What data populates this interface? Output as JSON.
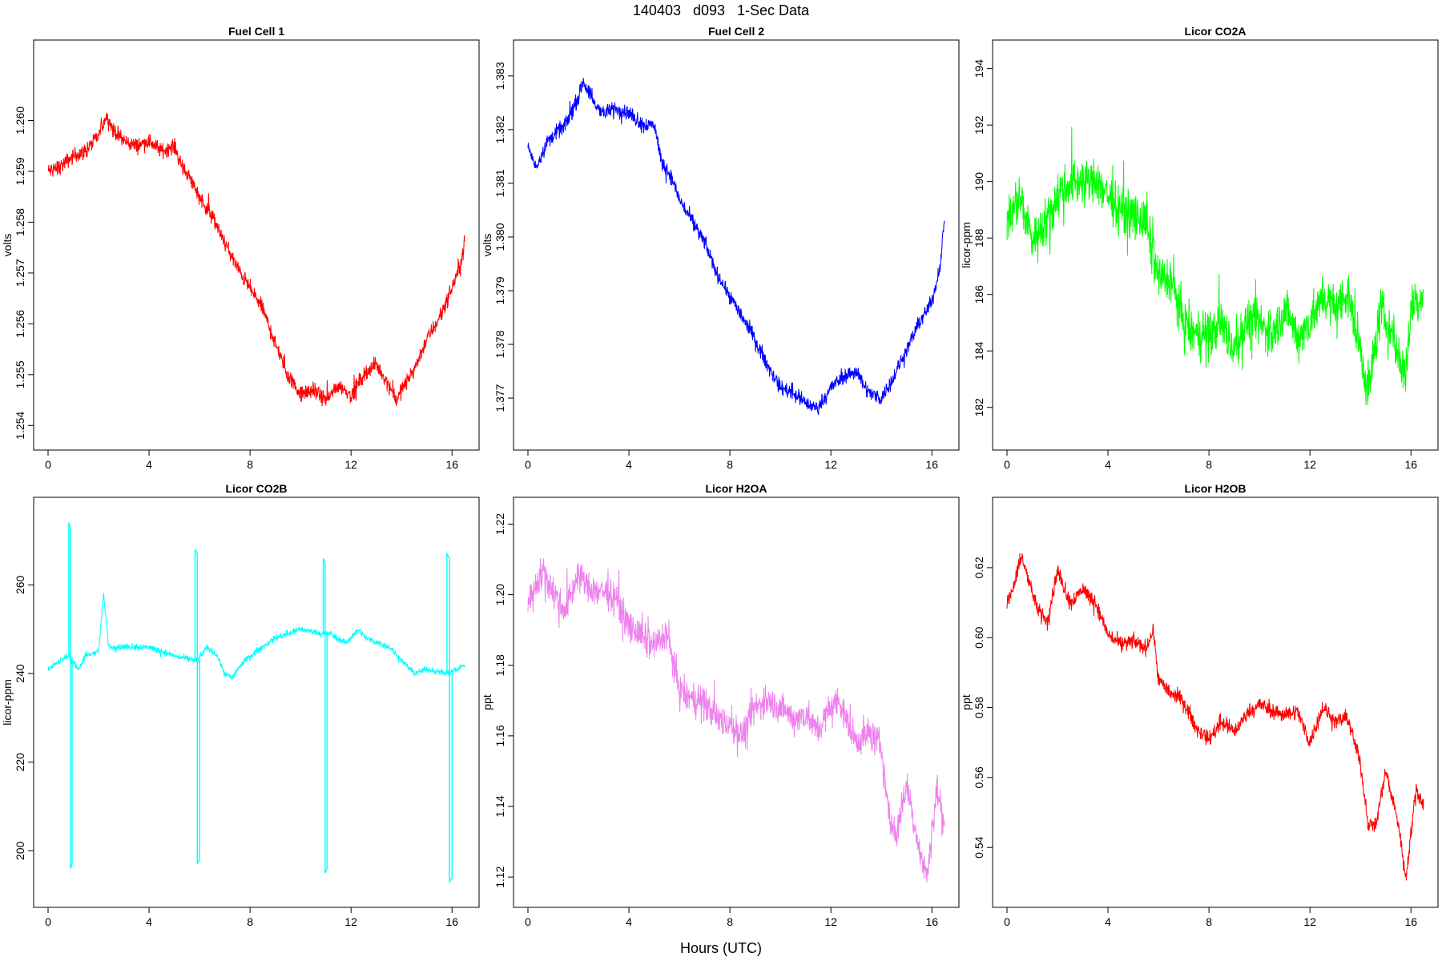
{
  "figure": {
    "suptitle": "140403   d093   1-Sec Data",
    "xlabel": "Hours (UTC)"
  },
  "chart_data": [
    {
      "type": "line",
      "title": "Fuel Cell 1",
      "ylabel": "volts",
      "color": "#ff0000",
      "xlim": [
        0,
        16.5
      ],
      "ylim": [
        1.2538,
        1.2613
      ],
      "xticks": [
        "0",
        "4",
        "8",
        "12",
        "16"
      ],
      "yticks": [
        "1.254",
        "1.255",
        "1.256",
        "1.257",
        "1.258",
        "1.259",
        "1.260"
      ],
      "noise": 0.00022,
      "series": [
        {
          "x": [
            0,
            0.5,
            1.0,
            1.5,
            2.0,
            2.3,
            2.6,
            3.0,
            3.5,
            4.0,
            4.5,
            5.0,
            5.3,
            5.7,
            6.0,
            6.5,
            7.0,
            7.5,
            8.0,
            8.5,
            9.0,
            9.5,
            10.0,
            10.5,
            11.0,
            11.5,
            12.0,
            12.5,
            13.0,
            13.5,
            13.8,
            14.0,
            14.5,
            15.0,
            15.5,
            16.0,
            16.3,
            16.5
          ],
          "y": [
            1.259,
            1.2591,
            1.2593,
            1.2594,
            1.2597,
            1.2601,
            1.2598,
            1.2596,
            1.2595,
            1.2596,
            1.2594,
            1.2595,
            1.2591,
            1.2588,
            1.2585,
            1.2581,
            1.2576,
            1.2571,
            1.2567,
            1.2563,
            1.2556,
            1.255,
            1.2546,
            1.2547,
            1.2545,
            1.2548,
            1.2546,
            1.255,
            1.2552,
            1.2548,
            1.2545,
            1.2547,
            1.2551,
            1.2557,
            1.2561,
            1.2567,
            1.2571,
            1.2576
          ]
        }
      ]
    },
    {
      "type": "line",
      "title": "Fuel Cell 2",
      "ylabel": "volts",
      "color": "#0000ff",
      "xlim": [
        0,
        16.5
      ],
      "ylim": [
        1.3763,
        1.3834
      ],
      "xticks": [
        "0",
        "4",
        "8",
        "12",
        "16"
      ],
      "yticks": [
        "1.377",
        "1.378",
        "1.379",
        "1.380",
        "1.381",
        "1.382",
        "1.383"
      ],
      "noise": 0.0002,
      "series": [
        {
          "x": [
            0,
            0.3,
            0.8,
            1.5,
            2.0,
            2.2,
            2.6,
            3.0,
            3.5,
            4.0,
            4.5,
            5.0,
            5.3,
            5.7,
            6.0,
            6.5,
            7.0,
            7.5,
            8.0,
            8.5,
            9.0,
            9.5,
            10.0,
            10.5,
            11.0,
            11.5,
            12.0,
            12.5,
            13.0,
            13.5,
            14.0,
            14.5,
            15.0,
            15.5,
            16.0,
            16.3,
            16.5
          ],
          "y": [
            1.3817,
            1.3813,
            1.3818,
            1.3821,
            1.3826,
            1.3829,
            1.3825,
            1.3823,
            1.3824,
            1.3823,
            1.3821,
            1.3821,
            1.3814,
            1.3811,
            1.3807,
            1.3803,
            1.3799,
            1.3793,
            1.3789,
            1.3785,
            1.3781,
            1.3776,
            1.3772,
            1.3771,
            1.3769,
            1.3768,
            1.3772,
            1.3774,
            1.3775,
            1.3771,
            1.377,
            1.3774,
            1.3779,
            1.3784,
            1.3788,
            1.3794,
            1.3803
          ]
        }
      ]
    },
    {
      "type": "line",
      "title": "Licor CO2A",
      "ylabel": "licor-ppm",
      "color": "#00ff00",
      "xlim": [
        0,
        16.5
      ],
      "ylim": [
        181.0,
        194.5
      ],
      "xticks": [
        "0",
        "4",
        "8",
        "12",
        "16"
      ],
      "yticks": [
        "182",
        "184",
        "186",
        "188",
        "190",
        "192",
        "194"
      ],
      "noise": 1.2,
      "series": [
        {
          "x": [
            0,
            0.5,
            1.0,
            1.5,
            2.0,
            2.5,
            3.0,
            3.5,
            4.0,
            4.5,
            5.0,
            5.5,
            6.0,
            6.5,
            7.0,
            7.5,
            8.0,
            8.5,
            9.0,
            9.5,
            10.0,
            10.5,
            11.0,
            11.5,
            12.0,
            12.5,
            13.0,
            13.5,
            14.0,
            14.3,
            14.8,
            15.3,
            15.8,
            16.0,
            16.5
          ],
          "y": [
            188.5,
            189.5,
            188.0,
            188.5,
            189.5,
            190.0,
            190.0,
            190.0,
            189.5,
            189.0,
            188.8,
            188.5,
            186.5,
            186.5,
            185.0,
            184.5,
            184.5,
            185.0,
            184.0,
            185.0,
            185.0,
            184.5,
            185.5,
            184.5,
            185.0,
            186.0,
            185.5,
            186.0,
            184.0,
            182.5,
            185.5,
            184.5,
            183.0,
            185.5,
            186.0
          ]
        }
      ]
    },
    {
      "type": "line",
      "title": "Licor CO2B",
      "ylabel": "licor-ppm",
      "color": "#00ffff",
      "xlim": [
        0,
        16.5
      ],
      "ylim": [
        190.5,
        276.5
      ],
      "xticks": [
        "0",
        "4",
        "8",
        "12",
        "16"
      ],
      "yticks": [
        "200",
        "220",
        "240",
        "260"
      ],
      "noise": 1.0,
      "series": [
        {
          "x": [
            0,
            0.5,
            0.8,
            0.95,
            1.05,
            1.2,
            1.5,
            2.0,
            2.2,
            2.4,
            3.0,
            4.0,
            5.0,
            5.8,
            5.95,
            6.05,
            6.3,
            6.7,
            7.0,
            7.3,
            7.5,
            8.0,
            9.0,
            10.0,
            10.8,
            11.0,
            11.2,
            11.4,
            11.8,
            12.0,
            12.3,
            12.6,
            13.5,
            14.0,
            14.5,
            15.0,
            15.8,
            16.2,
            16.5
          ],
          "y": [
            241,
            243,
            244,
            243,
            242,
            241,
            244,
            245,
            258,
            246,
            246,
            246,
            244,
            243,
            243,
            244,
            246,
            244,
            240,
            239,
            241,
            244,
            248,
            250,
            249,
            249,
            249,
            248,
            247,
            248,
            250,
            248,
            246,
            243,
            240,
            241,
            240,
            241,
            242
          ]
        }
      ],
      "spikes": [
        {
          "x0": 0.82,
          "x1": 0.95,
          "hi": 274,
          "lo": 196
        },
        {
          "x0": 5.82,
          "x1": 6.0,
          "hi": 268,
          "lo": 197
        },
        {
          "x0": 10.9,
          "x1": 11.05,
          "hi": 266,
          "lo": 195
        },
        {
          "x0": 15.8,
          "x1": 16.0,
          "hi": 267,
          "lo": 193
        }
      ]
    },
    {
      "type": "line",
      "title": "Licor H2OA",
      "ylabel": "ppt",
      "color": "#ee82ee",
      "xlim": [
        0,
        16.5
      ],
      "ylim": [
        1.1155,
        1.2235
      ],
      "xticks": [
        "0",
        "4",
        "8",
        "12",
        "16"
      ],
      "yticks": [
        "1.12",
        "1.14",
        "1.16",
        "1.18",
        "1.20",
        "1.22"
      ],
      "noise": 0.0065,
      "series": [
        {
          "x": [
            0,
            0.6,
            1.2,
            1.5,
            2.0,
            2.5,
            3.0,
            3.5,
            4.0,
            4.5,
            5.0,
            5.5,
            6.0,
            6.5,
            7.0,
            7.5,
            8.0,
            8.5,
            9.0,
            9.5,
            10.0,
            10.5,
            11.0,
            11.5,
            12.0,
            12.3,
            12.7,
            13.0,
            13.5,
            14.0,
            14.3,
            14.6,
            15.0,
            15.5,
            15.8,
            16.2,
            16.5
          ],
          "y": [
            1.198,
            1.207,
            1.198,
            1.196,
            1.206,
            1.201,
            1.201,
            1.199,
            1.191,
            1.188,
            1.185,
            1.189,
            1.173,
            1.17,
            1.169,
            1.165,
            1.163,
            1.16,
            1.168,
            1.17,
            1.168,
            1.165,
            1.166,
            1.162,
            1.168,
            1.17,
            1.163,
            1.158,
            1.161,
            1.157,
            1.137,
            1.132,
            1.146,
            1.128,
            1.12,
            1.145,
            1.135
          ]
        }
      ]
    },
    {
      "type": "line",
      "title": "Licor H2OB",
      "ylabel": "ppt",
      "color": "#ff0000",
      "xlim": [
        0,
        16.5
      ],
      "ylim": [
        0.527,
        0.636
      ],
      "xticks": [
        "0",
        "4",
        "8",
        "12",
        "16"
      ],
      "yticks": [
        "0.54",
        "0.56",
        "0.58",
        "0.60",
        "0.62"
      ],
      "noise": 0.0032,
      "series": [
        {
          "x": [
            0,
            0.6,
            1.2,
            1.6,
            2.0,
            2.5,
            3.0,
            3.5,
            4.0,
            4.5,
            5.0,
            5.5,
            5.8,
            6.0,
            6.5,
            7.0,
            7.5,
            8.0,
            8.5,
            9.0,
            9.5,
            10.0,
            10.5,
            11.0,
            11.5,
            12.0,
            12.5,
            13.0,
            13.5,
            14.0,
            14.3,
            14.6,
            15.0,
            15.5,
            15.8,
            16.2,
            16.5
          ],
          "y": [
            0.609,
            0.623,
            0.608,
            0.605,
            0.619,
            0.61,
            0.614,
            0.61,
            0.601,
            0.598,
            0.599,
            0.597,
            0.602,
            0.588,
            0.584,
            0.582,
            0.574,
            0.571,
            0.576,
            0.573,
            0.578,
            0.581,
            0.579,
            0.578,
            0.579,
            0.57,
            0.58,
            0.576,
            0.577,
            0.564,
            0.547,
            0.546,
            0.562,
            0.547,
            0.531,
            0.557,
            0.552
          ]
        }
      ]
    }
  ]
}
